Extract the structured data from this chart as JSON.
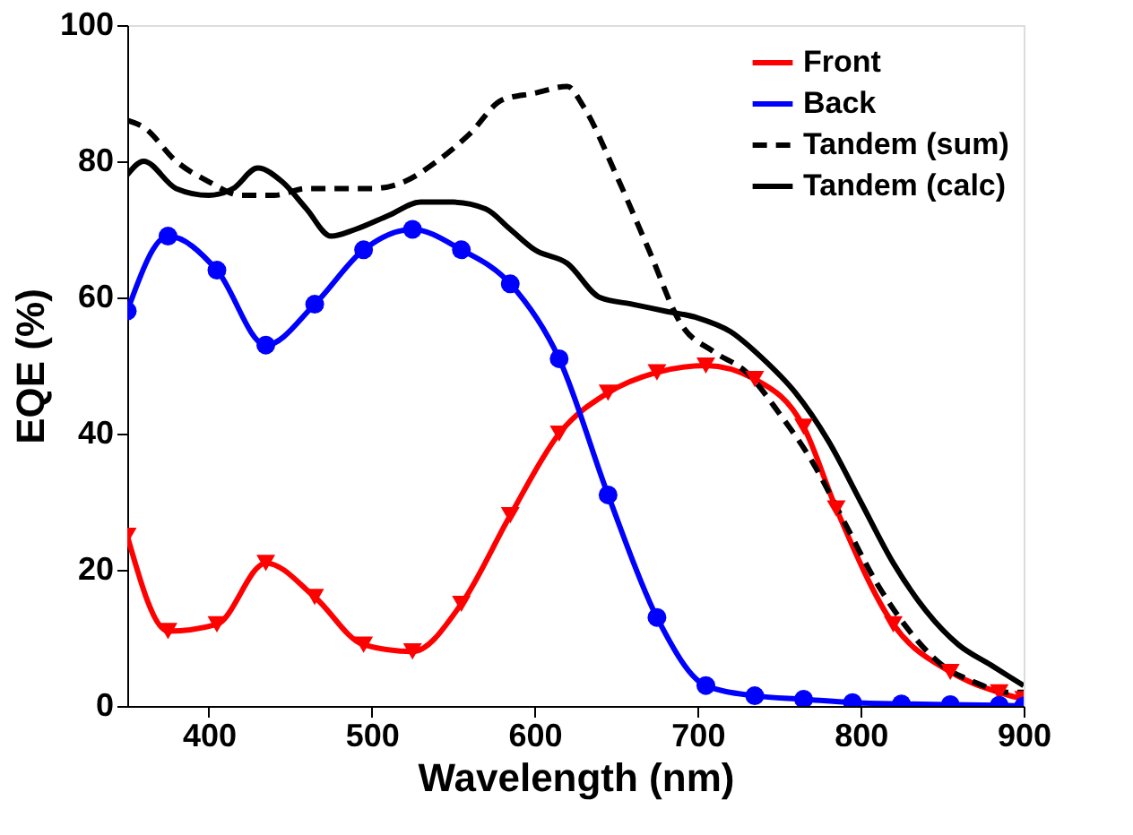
{
  "chart_data": {
    "type": "line",
    "xlabel": "Wavelength (nm)",
    "ylabel": "EQE (%)",
    "xlim": [
      350,
      900
    ],
    "ylim": [
      0,
      100
    ],
    "xticks": [
      400,
      500,
      600,
      700,
      800,
      900
    ],
    "yticks": [
      0,
      20,
      40,
      60,
      80,
      100
    ],
    "grid": false,
    "legend": "top right",
    "series": [
      {
        "name": "Front",
        "color": "#ff0000",
        "marker": "triangle",
        "line_style": "solid",
        "x": [
          350,
          375,
          405,
          435,
          465,
          495,
          525,
          555,
          585,
          615,
          645,
          675,
          705,
          735,
          765,
          785,
          820,
          855,
          885,
          900
        ],
        "values": [
          25,
          11,
          12,
          21,
          16,
          9,
          8,
          15,
          28,
          40,
          46,
          49,
          50,
          48,
          41,
          29,
          12,
          5,
          2,
          1
        ]
      },
      {
        "name": "Back",
        "color": "#0000ff",
        "marker": "circle",
        "line_style": "solid",
        "x": [
          350,
          375,
          405,
          435,
          465,
          495,
          525,
          555,
          585,
          615,
          645,
          675,
          705,
          735,
          765,
          795,
          825,
          855,
          885,
          900
        ],
        "values": [
          58,
          69,
          64,
          53,
          59,
          67,
          70,
          67,
          62,
          51,
          31,
          13,
          3,
          1.5,
          1,
          0.5,
          0.3,
          0.2,
          0.1,
          0
        ]
      },
      {
        "name": "Tandem (sum)",
        "color": "#000000",
        "marker": "none",
        "line_style": "dashed",
        "x": [
          350,
          360,
          380,
          400,
          420,
          440,
          460,
          480,
          500,
          520,
          540,
          560,
          580,
          600,
          620,
          630,
          650,
          670,
          690,
          710,
          730,
          750,
          770,
          790,
          810,
          830,
          850,
          870,
          890,
          900
        ],
        "values": [
          86,
          85,
          80,
          77,
          75,
          75,
          76,
          76,
          76,
          77,
          80,
          84,
          89,
          90,
          91,
          88,
          78,
          67,
          56,
          52,
          49,
          43,
          36,
          27,
          18,
          11,
          6,
          3.5,
          2,
          2
        ]
      },
      {
        "name": "Tandem (calc)",
        "color": "#000000",
        "marker": "none",
        "line_style": "solid",
        "x": [
          350,
          360,
          380,
          400,
          415,
          430,
          445,
          460,
          475,
          490,
          510,
          530,
          550,
          570,
          585,
          600,
          620,
          640,
          660,
          680,
          700,
          720,
          740,
          760,
          780,
          800,
          820,
          840,
          860,
          880,
          900
        ],
        "values": [
          78,
          80,
          76,
          75,
          76,
          79,
          77,
          73,
          69,
          70,
          72,
          74,
          74,
          73,
          70,
          67,
          65,
          60,
          59,
          58,
          57,
          55,
          51,
          46,
          39,
          30,
          21,
          14,
          9,
          6,
          3
        ]
      }
    ]
  }
}
